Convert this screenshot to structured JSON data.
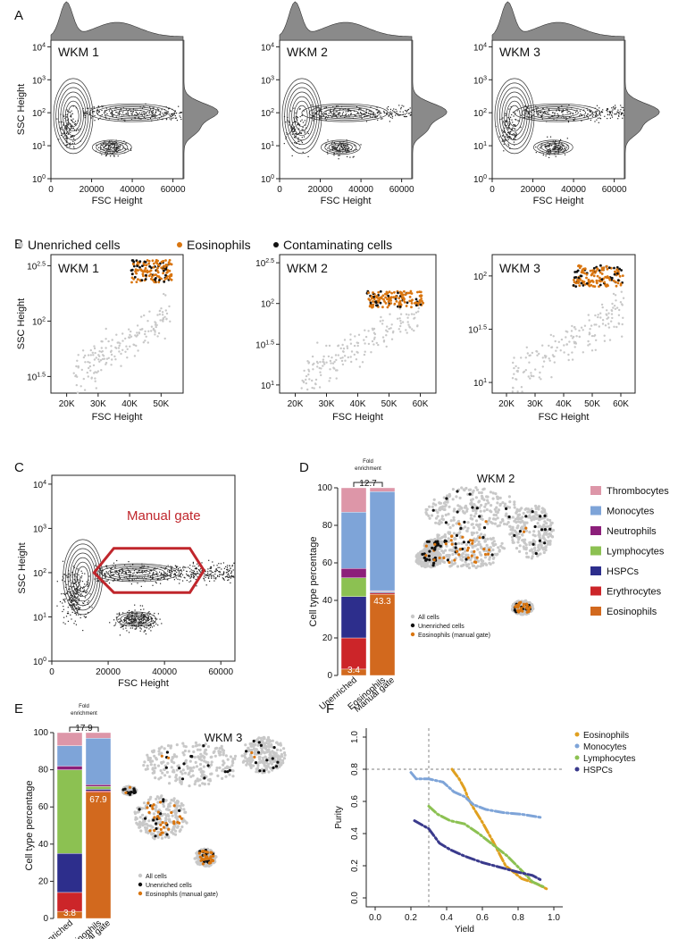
{
  "figure": {
    "panel_letters": [
      "A",
      "B",
      "C",
      "D",
      "E",
      "F"
    ],
    "colors": {
      "unenriched": "#c8c8c8",
      "eosinophils": "#d9750f",
      "contaminating": "#111111",
      "thrombocytes": "#dd96a8",
      "monocytes": "#7ea4d8",
      "neutrophils": "#8c1f7a",
      "lymphocytes": "#8cc152",
      "hspcs": "#2d2e8c",
      "erythrocytes": "#cc2529",
      "eosin_bar": "#d2691e",
      "gate": "#c0262c",
      "f_eosinophils": "#e0a020",
      "f_monocytes": "#7ea4d8",
      "f_lymphocytes": "#8cc152",
      "f_hspcs": "#3a3a8c"
    }
  },
  "panelA": {
    "xlabel": "FSC Height",
    "ylabel": "SSC Height",
    "xticks": [
      "0",
      "20000",
      "40000",
      "60000"
    ],
    "yticks_base": "10",
    "yticks_exp": [
      "0",
      "1",
      "2",
      "3",
      "4"
    ],
    "samples": [
      "WKM 1",
      "WKM 2",
      "WKM 3"
    ]
  },
  "panelB": {
    "legend": [
      "Unenriched cells",
      "Eosinophils",
      "Contaminating cells"
    ],
    "xlabel": "FSC Height",
    "ylabel": "SSC Height",
    "samples": [
      "WKM 1",
      "WKM 2",
      "WKM 3"
    ],
    "xticks": [
      [
        "20K",
        "30K",
        "40K",
        "50K"
      ],
      [
        "20K",
        "30K",
        "40K",
        "50K",
        "60K"
      ],
      [
        "20K",
        "30K",
        "40K",
        "50K",
        "60K"
      ]
    ],
    "yticks_base": "10",
    "yticks_exp": [
      [
        "1.5",
        "2",
        "2.5"
      ],
      [
        "1",
        "1.5",
        "2",
        "2.5"
      ],
      [
        "1",
        "1.5",
        "2"
      ]
    ]
  },
  "panelC": {
    "xlabel": "FSC Height",
    "ylabel": "SSC Height",
    "xticks": [
      "0",
      "20000",
      "40000",
      "60000"
    ],
    "yticks_base": "10",
    "yticks_exp": [
      "0",
      "1",
      "2",
      "3",
      "4"
    ],
    "gate_label": "Manual gate"
  },
  "panelD": {
    "ylabel": "Cell type percentage",
    "yticks": [
      "0",
      "20",
      "40",
      "60",
      "80",
      "100"
    ],
    "fold_label_1": "Fold",
    "fold_label_2": "enrichment",
    "fold_value": "12.7",
    "bar_labels": [
      "Unenriched",
      "Eosinophils",
      "Manual gate"
    ],
    "value_low": "3.4",
    "value_high": "43.3",
    "umap_title": "WKM 2",
    "umap_legend": [
      "All cells",
      "Unenriched cells",
      "Eosinophils (manual gate)"
    ],
    "celltype_legend": [
      "Thrombocytes",
      "Monocytes",
      "Neutrophils",
      "Lymphocytes",
      "HSPCs",
      "Erythrocytes",
      "Eosinophils"
    ]
  },
  "panelE": {
    "ylabel": "Cell type percentage",
    "yticks": [
      "0",
      "20",
      "40",
      "60",
      "80",
      "100"
    ],
    "fold_label_1": "Fold",
    "fold_label_2": "enrichment",
    "fold_value": "17.9",
    "bar_labels": [
      "Unenriched",
      "Eosinophils",
      "Manual gate"
    ],
    "value_low": "3.8",
    "value_high": "67.9",
    "umap_title": "WKM 3",
    "umap_legend": [
      "All cells",
      "Unenriched cells",
      "Eosinophils (manual gate)"
    ]
  },
  "panelF": {
    "xlabel": "Yield",
    "ylabel": "Purity",
    "xticks": [
      "0.0",
      "0.2",
      "0.4",
      "0.6",
      "0.8",
      "1.0"
    ],
    "yticks": [
      "0.0",
      "0.2",
      "0.4",
      "0.6",
      "0.8",
      "1.0"
    ],
    "legend": [
      "Eosinophils",
      "Monocytes",
      "Lymphocytes",
      "HSPCs"
    ]
  },
  "chart_data": [
    {
      "type": "bar",
      "panel": "D",
      "categories": [
        "Unenriched",
        "Eosinophils Manual gate"
      ],
      "ylabel": "Cell type percentage",
      "ylim": [
        0,
        100
      ],
      "series": [
        {
          "name": "Eosinophils",
          "values": [
            3.4,
            43.3
          ]
        },
        {
          "name": "Erythrocytes",
          "values": [
            16.6,
            0.7
          ]
        },
        {
          "name": "HSPCs",
          "values": [
            22,
            0.5
          ]
        },
        {
          "name": "Lymphocytes",
          "values": [
            10,
            0.3
          ]
        },
        {
          "name": "Neutrophils",
          "values": [
            5,
            0.4
          ]
        },
        {
          "name": "Monocytes",
          "values": [
            30,
            52.8
          ]
        },
        {
          "name": "Thrombocytes",
          "values": [
            13,
            2
          ]
        }
      ]
    },
    {
      "type": "bar",
      "panel": "E",
      "categories": [
        "Unenriched",
        "Eosinophils Manual gate"
      ],
      "ylabel": "Cell type percentage",
      "ylim": [
        0,
        100
      ],
      "series": [
        {
          "name": "Eosinophils",
          "values": [
            3.8,
            67.9
          ]
        },
        {
          "name": "Erythrocytes",
          "values": [
            10.2,
            0.7
          ]
        },
        {
          "name": "HSPCs",
          "values": [
            21,
            0.9
          ]
        },
        {
          "name": "Lymphocytes",
          "values": [
            45,
            1.5
          ]
        },
        {
          "name": "Neutrophils",
          "values": [
            2,
            1
          ]
        },
        {
          "name": "Monocytes",
          "values": [
            11,
            25
          ]
        },
        {
          "name": "Thrombocytes",
          "values": [
            7,
            3
          ]
        }
      ]
    },
    {
      "type": "line",
      "panel": "F",
      "xlabel": "Yield",
      "ylabel": "Purity",
      "xlim": [
        0,
        1
      ],
      "ylim": [
        0,
        1
      ],
      "reference_lines": {
        "x": 0.3,
        "y": 0.8
      },
      "series": [
        {
          "name": "Eosinophils",
          "x": [
            0.43,
            0.47,
            0.5,
            0.52,
            0.55,
            0.6,
            0.66,
            0.73,
            0.82,
            0.9,
            0.97
          ],
          "y": [
            0.8,
            0.74,
            0.68,
            0.62,
            0.56,
            0.47,
            0.35,
            0.2,
            0.12,
            0.09,
            0.05
          ]
        },
        {
          "name": "Monocytes",
          "x": [
            0.2,
            0.23,
            0.3,
            0.38,
            0.44,
            0.5,
            0.55,
            0.62,
            0.72,
            0.82,
            0.93
          ],
          "y": [
            0.78,
            0.74,
            0.74,
            0.72,
            0.66,
            0.63,
            0.58,
            0.55,
            0.53,
            0.52,
            0.5
          ]
        },
        {
          "name": "Lymphocytes",
          "x": [
            0.3,
            0.35,
            0.42,
            0.5,
            0.58,
            0.66,
            0.74,
            0.82,
            0.88,
            0.94
          ],
          "y": [
            0.57,
            0.52,
            0.48,
            0.46,
            0.4,
            0.33,
            0.26,
            0.17,
            0.1,
            0.07
          ]
        },
        {
          "name": "HSPCs",
          "x": [
            0.22,
            0.3,
            0.36,
            0.42,
            0.5,
            0.6,
            0.7,
            0.8,
            0.88,
            0.93
          ],
          "y": [
            0.48,
            0.43,
            0.34,
            0.3,
            0.26,
            0.22,
            0.19,
            0.16,
            0.14,
            0.11
          ]
        }
      ]
    }
  ]
}
